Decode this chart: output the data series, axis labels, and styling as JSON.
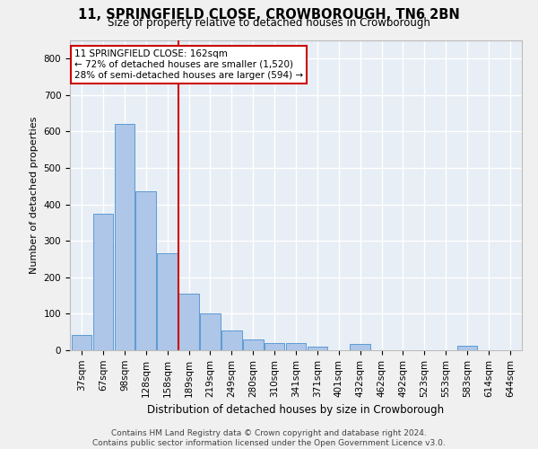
{
  "title": "11, SPRINGFIELD CLOSE, CROWBOROUGH, TN6 2BN",
  "subtitle": "Size of property relative to detached houses in Crowborough",
  "xlabel": "Distribution of detached houses by size in Crowborough",
  "ylabel": "Number of detached properties",
  "footer_line1": "Contains HM Land Registry data © Crown copyright and database right 2024.",
  "footer_line2": "Contains public sector information licensed under the Open Government Licence v3.0.",
  "bar_color": "#aec6e8",
  "bar_edge_color": "#5b9bd5",
  "background_color": "#e8eef5",
  "grid_color": "#ffffff",
  "vline_color": "#cc0000",
  "vline_x": 4.5,
  "annotation_text": "11 SPRINGFIELD CLOSE: 162sqm\n← 72% of detached houses are smaller (1,520)\n28% of semi-detached houses are larger (594) →",
  "annotation_box_color": "#ffffff",
  "annotation_box_edge": "#cc0000",
  "categories": [
    "37sqm",
    "67sqm",
    "98sqm",
    "128sqm",
    "158sqm",
    "189sqm",
    "219sqm",
    "249sqm",
    "280sqm",
    "310sqm",
    "341sqm",
    "371sqm",
    "401sqm",
    "432sqm",
    "462sqm",
    "492sqm",
    "523sqm",
    "553sqm",
    "583sqm",
    "614sqm",
    "644sqm"
  ],
  "values": [
    42,
    375,
    620,
    435,
    265,
    155,
    100,
    55,
    30,
    20,
    20,
    10,
    0,
    18,
    0,
    0,
    0,
    0,
    12,
    0,
    0
  ],
  "ylim": [
    0,
    850
  ],
  "yticks": [
    0,
    100,
    200,
    300,
    400,
    500,
    600,
    700,
    800
  ],
  "fig_width": 6.0,
  "fig_height": 5.0,
  "fig_dpi": 100,
  "title_fontsize": 10.5,
  "subtitle_fontsize": 8.5,
  "ylabel_fontsize": 8,
  "xlabel_fontsize": 8.5,
  "tick_fontsize": 7.5,
  "annotation_fontsize": 7.5,
  "footer_fontsize": 6.5,
  "fig_bg": "#f0f0f0"
}
